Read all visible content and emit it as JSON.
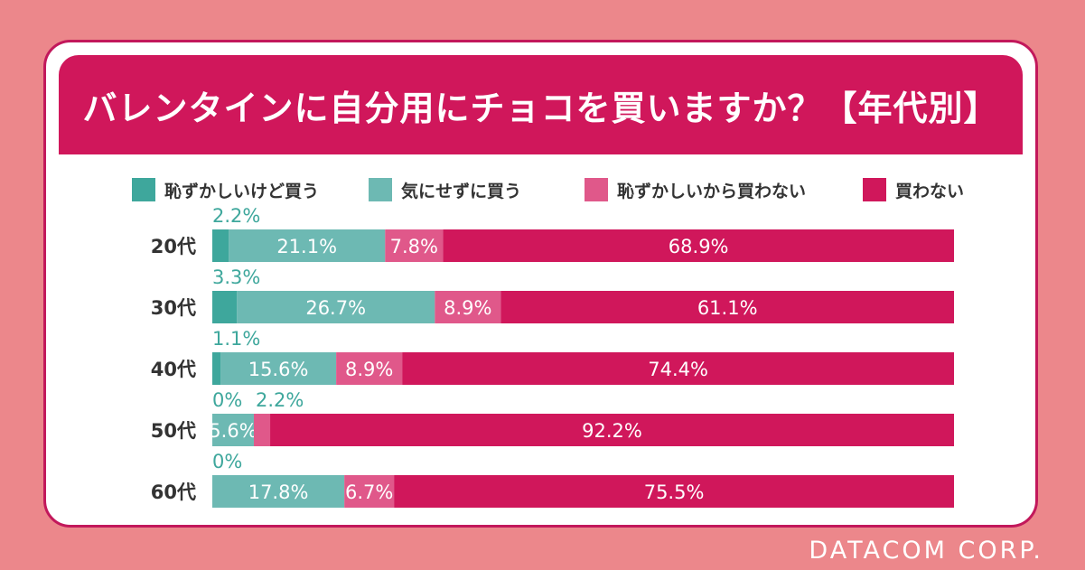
{
  "title": "バレンタインに自分用にチョコを買いますか？【年代別】",
  "footer": "DATACOM CORP.",
  "colors": {
    "background": "#ec878b",
    "banner": "#d0175b",
    "series": [
      "#3ea79c",
      "#6db9b3",
      "#e0588a",
      "#d0175b"
    ]
  },
  "chart_data": {
    "type": "bar",
    "orientation": "horizontal-stacked-100",
    "title": "バレンタインに自分用にチョコを買いますか？【年代別】",
    "categories": [
      "20代",
      "30代",
      "40代",
      "50代",
      "60代"
    ],
    "series": [
      {
        "name": "恥ずかしいけど買う",
        "values": [
          2.2,
          3.3,
          1.1,
          0,
          0
        ],
        "labels": [
          "2.2%",
          "3.3%",
          "1.1%",
          "0%",
          "0%"
        ]
      },
      {
        "name": "気にせずに買う",
        "values": [
          21.1,
          26.7,
          15.6,
          5.6,
          17.8
        ],
        "labels": [
          "21.1%",
          "26.7%",
          "15.6%",
          "5.6%",
          "17.8%"
        ]
      },
      {
        "name": "恥ずかしいから買わない",
        "values": [
          7.8,
          8.9,
          8.9,
          2.2,
          6.7
        ],
        "labels": [
          "7.8%",
          "8.9%",
          "8.9%",
          "2.2%",
          "6.7%"
        ]
      },
      {
        "name": "買わない",
        "values": [
          68.9,
          61.1,
          74.4,
          92.2,
          75.5
        ],
        "labels": [
          "68.9%",
          "61.1%",
          "74.4%",
          "92.2%",
          "75.5%"
        ]
      }
    ],
    "xlim": [
      0,
      100
    ]
  }
}
